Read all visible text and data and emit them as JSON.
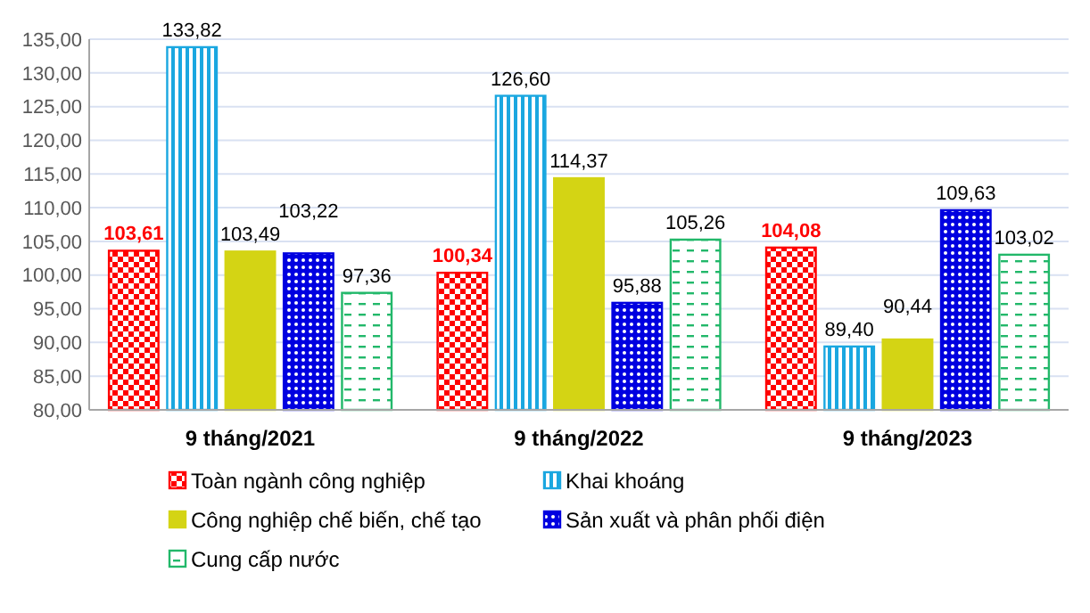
{
  "chart_data": {
    "type": "bar",
    "categories": [
      "9 tháng/2021",
      "9 tháng/2022",
      "9 tháng/2023"
    ],
    "series": [
      {
        "name": "Toàn ngành công nghiệp",
        "color": "#ff0000",
        "values": [
          103.61,
          100.34,
          104.08
        ]
      },
      {
        "name": "Khai khoáng",
        "color": "#1aa7e0",
        "values": [
          133.82,
          126.6,
          89.4
        ]
      },
      {
        "name": "Công nghiệp chế biến, chế tạo",
        "color": "#d4d414",
        "values": [
          103.49,
          114.37,
          90.44
        ]
      },
      {
        "name": "Sản xuất và phân phối điện",
        "color": "#0000e0",
        "values": [
          103.22,
          95.88,
          109.63
        ]
      },
      {
        "name": "Cung cấp nước",
        "color": "#22b86a",
        "values": [
          97.36,
          105.26,
          103.02
        ]
      }
    ],
    "value_labels": [
      [
        "103,61",
        "100,34",
        "104,08"
      ],
      [
        "133,82",
        "126,60",
        "89,40"
      ],
      [
        "103,49",
        "114,37",
        "90,44"
      ],
      [
        "103,22",
        "95,88",
        "109,63"
      ],
      [
        "97,36",
        "105,26",
        "103,02"
      ]
    ],
    "ylim": [
      80,
      135
    ],
    "yticks": [
      {
        "value": 80,
        "label": "80,00"
      },
      {
        "value": 85,
        "label": "85,00"
      },
      {
        "value": 90,
        "label": "90,00"
      },
      {
        "value": 95,
        "label": "95,00"
      },
      {
        "value": 100,
        "label": "100,00"
      },
      {
        "value": 105,
        "label": "105,00"
      },
      {
        "value": 110,
        "label": "110,00"
      },
      {
        "value": 115,
        "label": "115,00"
      },
      {
        "value": 120,
        "label": "120,00"
      },
      {
        "value": 125,
        "label": "125,00"
      },
      {
        "value": 130,
        "label": "130,00"
      },
      {
        "value": 135,
        "label": "135,00"
      }
    ],
    "grid": "y",
    "legend": "bottom"
  }
}
